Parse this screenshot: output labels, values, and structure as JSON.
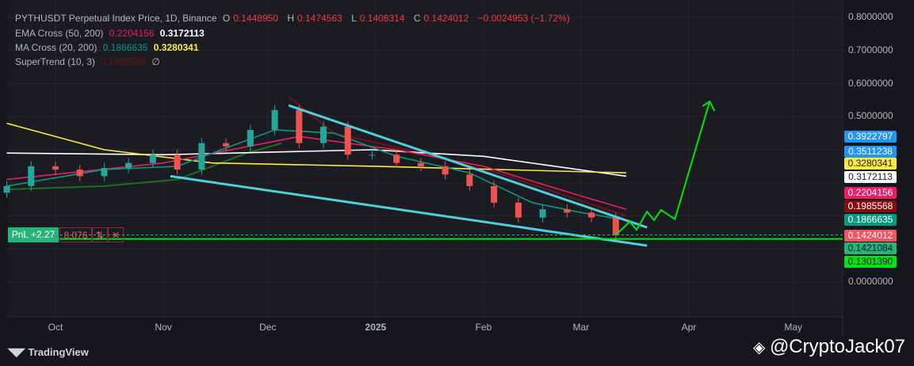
{
  "header": {
    "symbol": "PYTHUSDT Perpetual Index Price, 1D, Binance",
    "open_label": "O",
    "open": "0.1448950",
    "high_label": "H",
    "high": "0.1474563",
    "low_label": "L",
    "low": "0.1408314",
    "close_label": "C",
    "close": "0.1424012",
    "change": "−0.0024953 (−1.72%)"
  },
  "indicators": [
    {
      "name": "EMA Cross (50, 200)",
      "v1": "0.2204156",
      "v2": "0.3172113"
    },
    {
      "name": "MA Cross (20, 200)",
      "v1": "0.1866635",
      "v2": "0.3280341"
    },
    {
      "name": "SuperTrend (10, 3)",
      "v1": "0.1985568",
      "v2": "∅"
    }
  ],
  "price_labels": [
    {
      "text": "0.3922797",
      "bg": "#2196f3",
      "fg": "#ffffff"
    },
    {
      "text": "0.3511238",
      "bg": "#2196f3",
      "fg": "#ffffff"
    },
    {
      "text": "0.3280341",
      "bg": "#ffeb3b",
      "fg": "#131722"
    },
    {
      "text": "0.3172113",
      "bg": "#ffffff",
      "fg": "#131722"
    },
    {
      "text": "0.2204156",
      "bg": "#e91e63",
      "fg": "#ffffff"
    },
    {
      "text": "0.1985568",
      "bg": "#880e0e",
      "fg": "#ffffff"
    },
    {
      "text": "0.1866635",
      "bg": "#089981",
      "fg": "#ffffff"
    },
    {
      "text": "0.1424012",
      "bg": "#f7525f",
      "fg": "#ffffff"
    },
    {
      "text": "0.1421084",
      "bg": "#26b47a",
      "fg": "#131722"
    },
    {
      "text": "0.1301390",
      "bg": "#00e510",
      "fg": "#131722"
    }
  ],
  "position": {
    "pnl": "PnL +2.27",
    "qty": "8,076",
    "reverse_icon": "arrows-up-down-icon",
    "close_icon": "close-icon"
  },
  "footer": {
    "brand": "TradingView",
    "watermark": "@CryptoJack07"
  },
  "chart_data": {
    "type": "candlestick",
    "yticks": [
      "0.8000000",
      "0.7000000",
      "0.6000000",
      "0.5000000",
      "0.0000000"
    ],
    "xticks": [
      {
        "label": "Oct",
        "date": "2024-10-01"
      },
      {
        "label": "Nov",
        "date": "2024-11-01"
      },
      {
        "label": "Dec",
        "date": "2024-12-01"
      },
      {
        "label": "2025",
        "date": "2025-01-01"
      },
      {
        "label": "Feb",
        "date": "2025-02-01"
      },
      {
        "label": "Mar",
        "date": "2025-03-01"
      },
      {
        "label": "Apr",
        "date": "2025-04-01"
      },
      {
        "label": "May",
        "date": "2025-05-01"
      }
    ],
    "ylim": [
      0,
      0.8
    ],
    "grid": true,
    "colors": {
      "up": "#26a69a",
      "down": "#ef5350",
      "ema50": "#e91e63",
      "ema200": "#ffffff",
      "ma20": "#089981",
      "ma200": "#ffeb3b",
      "trendline": "#4dd0e1",
      "projection": "#00e510"
    },
    "closes": [
      [
        "2024-09-17",
        0.29
      ],
      [
        "2024-09-24",
        0.35
      ],
      [
        "2024-10-01",
        0.34
      ],
      [
        "2024-10-08",
        0.32
      ],
      [
        "2024-10-15",
        0.345
      ],
      [
        "2024-10-22",
        0.36
      ],
      [
        "2024-10-29",
        0.385
      ],
      [
        "2024-11-05",
        0.34
      ],
      [
        "2024-11-12",
        0.42
      ],
      [
        "2024-11-19",
        0.41
      ],
      [
        "2024-11-26",
        0.46
      ],
      [
        "2024-12-03",
        0.52
      ],
      [
        "2024-12-10",
        0.42
      ],
      [
        "2024-12-17",
        0.47
      ],
      [
        "2024-12-24",
        0.385
      ],
      [
        "2024-12-31",
        0.385
      ],
      [
        "2025-01-07",
        0.36
      ],
      [
        "2025-01-14",
        0.35
      ],
      [
        "2025-01-21",
        0.325
      ],
      [
        "2025-01-28",
        0.29
      ],
      [
        "2025-02-04",
        0.24
      ],
      [
        "2025-02-11",
        0.195
      ],
      [
        "2025-02-18",
        0.22
      ],
      [
        "2025-02-25",
        0.21
      ],
      [
        "2025-03-04",
        0.195
      ],
      [
        "2025-03-11",
        0.142
      ]
    ],
    "series": [
      {
        "key": "ema200",
        "points": [
          [
            "2024-09-17",
            0.39
          ],
          [
            "2024-11-01",
            0.385
          ],
          [
            "2024-12-31",
            0.4
          ],
          [
            "2025-02-01",
            0.38
          ],
          [
            "2025-03-14",
            0.32
          ]
        ]
      },
      {
        "key": "ma200",
        "points": [
          [
            "2024-09-17",
            0.48
          ],
          [
            "2024-10-15",
            0.4
          ],
          [
            "2024-11-15",
            0.36
          ],
          [
            "2025-01-01",
            0.35
          ],
          [
            "2025-03-14",
            0.33
          ]
        ]
      },
      {
        "key": "ema50",
        "points": [
          [
            "2024-09-17",
            0.31
          ],
          [
            "2024-11-01",
            0.36
          ],
          [
            "2024-12-10",
            0.44
          ],
          [
            "2025-01-07",
            0.4
          ],
          [
            "2025-02-01",
            0.35
          ],
          [
            "2025-03-01",
            0.26
          ],
          [
            "2025-03-14",
            0.22
          ]
        ]
      },
      {
        "key": "ma20",
        "points": [
          [
            "2024-09-17",
            0.29
          ],
          [
            "2024-10-15",
            0.34
          ],
          [
            "2024-11-05",
            0.35
          ],
          [
            "2024-12-03",
            0.46
          ],
          [
            "2024-12-20",
            0.45
          ],
          [
            "2025-01-07",
            0.38
          ],
          [
            "2025-01-28",
            0.33
          ],
          [
            "2025-02-15",
            0.24
          ],
          [
            "2025-03-01",
            0.21
          ],
          [
            "2025-03-14",
            0.187
          ]
        ]
      }
    ],
    "supertrend": {
      "up": [
        [
          "2024-09-17",
          0.28
        ],
        [
          "2024-10-15",
          0.29
        ],
        [
          "2024-11-05",
          0.31
        ],
        [
          "2024-11-25",
          0.39
        ],
        [
          "2024-12-05",
          0.42
        ]
      ],
      "down": [
        [
          "2024-12-07",
          0.56
        ],
        [
          "2024-12-20",
          0.45
        ],
        [
          "2025-01-10",
          0.4
        ],
        [
          "2025-02-05",
          0.33
        ],
        [
          "2025-02-25",
          0.26
        ],
        [
          "2025-03-14",
          0.2
        ]
      ]
    },
    "trendlines": [
      [
        [
          "2024-12-07",
          0.534
        ],
        [
          "2025-03-20",
          0.165
        ]
      ],
      [
        [
          "2024-11-03",
          0.32
        ],
        [
          "2025-03-20",
          0.11
        ]
      ]
    ],
    "projection": [
      [
        "2025-03-11",
        0.142
      ],
      [
        "2025-03-15",
        0.182
      ],
      [
        "2025-03-17",
        0.158
      ],
      [
        "2025-03-20",
        0.213
      ],
      [
        "2025-03-22",
        0.187
      ],
      [
        "2025-03-24",
        0.218
      ],
      [
        "2025-03-28",
        0.19
      ],
      [
        "2025-04-07",
        0.546
      ]
    ],
    "hlines": [
      {
        "price": 0.1424,
        "style": "dashed"
      },
      {
        "price": 0.1301,
        "style": "solid"
      }
    ]
  }
}
